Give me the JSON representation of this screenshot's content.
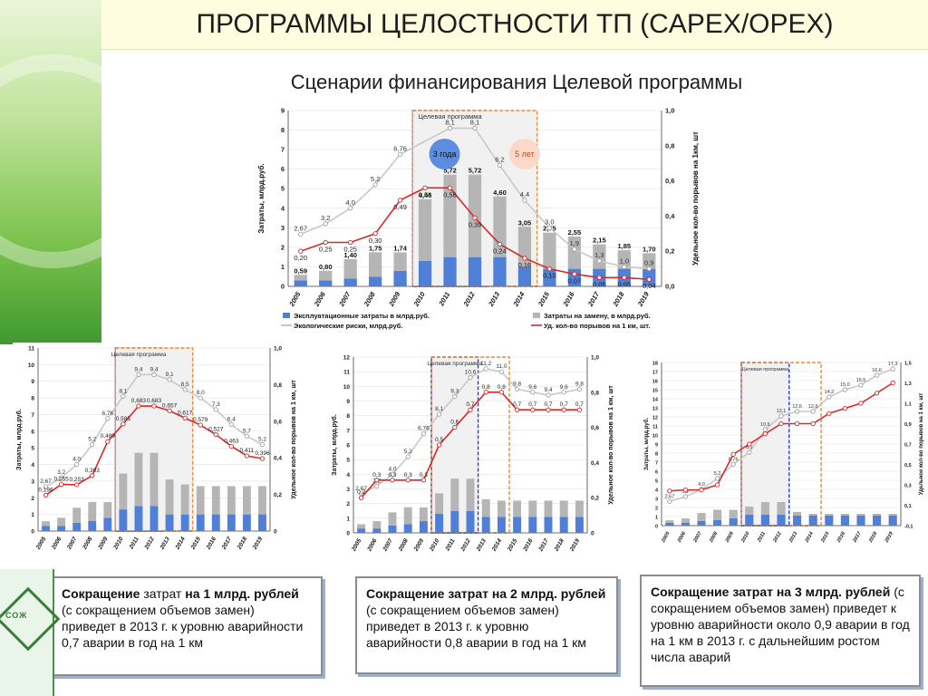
{
  "page": {
    "title": "ПРОГРАММЫ ЦЕЛОСТНОСТИ ТП (CAPEX/OPEX)",
    "subtitle": "Сценарии финансирования Целевой программы",
    "logo_text": "СОЖ"
  },
  "captions": [
    {
      "b1": "Сокращение",
      "t1": " затрат ",
      "b2": "на 1 млрд. рублей",
      "t2": "  (с сокращением объемов замен) приведет в 2013 г.  к уровню аварийности  0,7 аварии в год на 1 км"
    },
    {
      "b1": "Сокращение затрат на 2 млрд. рублей",
      "t1": " (с сокращением объемов замен) приведет в 2013 г. к уровню аварийности 0,8 аварии в год на 1 км",
      "b2": "",
      "t2": ""
    },
    {
      "b1": "Сокращение затрат на 3 млрд. рублей",
      "t1": " (с сокращением объемов замен) приведет к уровню аварийности около 0,9 аварии в год на 1 км  в 2013 г. с дальнейшим ростом числа аварий",
      "b2": "",
      "t2": ""
    }
  ],
  "colors": {
    "opex": "#4f7fd6",
    "capex": "#b5b5b5",
    "eco": "#c8c8c8",
    "failures": "#d62a2a",
    "dashed_blue": "#2a3cd6",
    "dashed_orange": "#f08a3a"
  },
  "chart_data": [
    {
      "id": "main",
      "type": "bar",
      "categories": [
        "2005",
        "2006",
        "2007",
        "2008",
        "2009",
        "2010",
        "2011",
        "2012",
        "2013",
        "2014",
        "2015",
        "2016",
        "2017",
        "2018",
        "2019"
      ],
      "ylabel": "Затраты, млрд.руб.",
      "y2label": "Удельное кол-во порывов на 1км, шт",
      "ylim": [
        0,
        9
      ],
      "y2lim": [
        0,
        1.0
      ],
      "yticks": [
        "0",
        "1",
        "2",
        "3",
        "4",
        "5",
        "6",
        "7",
        "8",
        "9"
      ],
      "y2ticks": [
        "0,0",
        "0,2",
        "0,4",
        "0,6",
        "0,8",
        "1,0"
      ],
      "legend_position": "bottom",
      "program_label": "Целевая программа",
      "scenario_labels": [
        "3 года",
        "5 лет"
      ],
      "series": [
        {
          "name": "Эксплуатационные затраты в млрд.руб.",
          "kind": "bar",
          "values": [
            0.3,
            0.3,
            0.4,
            0.5,
            0.8,
            1.3,
            1.5,
            1.5,
            1.5,
            1.0,
            0.9,
            0.9,
            0.9,
            0.9,
            0.9
          ]
        },
        {
          "name": "Затраты на замену, в млрд.руб.",
          "kind": "bar",
          "values": [
            0.29,
            0.5,
            1.0,
            1.25,
            0.94,
            3.16,
            4.22,
            4.22,
            3.1,
            2.05,
            1.85,
            1.65,
            1.25,
            0.95,
            0.8
          ]
        },
        {
          "name": "Экологические риски, млрд.руб.",
          "kind": "line",
          "values": [
            2.67,
            3.2,
            4.0,
            5.2,
            6.76,
            null,
            8.1,
            8.1,
            6.2,
            4.4,
            3.0,
            1.9,
            1.3,
            1.0,
            0.9
          ]
        },
        {
          "name": "Уд. кол-во порывов на 1 км, шт.",
          "kind": "line",
          "axis": "y2",
          "values": [
            0.2,
            0.25,
            0.25,
            0.3,
            0.49,
            0.56,
            0.56,
            0.39,
            0.24,
            0.16,
            0.1,
            0.07,
            0.05,
            0.05,
            0.04
          ]
        }
      ],
      "labels": {
        "bar_totals": [
          "0,59",
          "0,80",
          "1,40",
          "1,75",
          "1,74",
          "4,46",
          "5,72",
          "5,72",
          "4,60",
          "3,05",
          "2,75",
          "2,55",
          "2,15",
          "1,85",
          "1,70"
        ],
        "eco": [
          "2,67",
          "3,2",
          "4,0",
          "5,2",
          "6,76",
          "",
          "8,1",
          "8,1",
          "6,2",
          "4,4",
          "3,0",
          "1,9",
          "1,3",
          "1,0",
          "0,9"
        ],
        "fail": [
          "0,20",
          "0,25",
          "0,25",
          "0,30",
          "0,49",
          "0,56",
          "0,56",
          "0,39",
          "0,24",
          "0,16",
          "0,10",
          "0,07",
          "0,05",
          "0,05",
          "0,04"
        ]
      }
    },
    {
      "id": "s1",
      "type": "bar",
      "categories": [
        "2005",
        "2006",
        "2007",
        "2008",
        "2009",
        "2010",
        "2011",
        "2012",
        "2013",
        "2014",
        "2015",
        "2016",
        "2017",
        "2018",
        "2019"
      ],
      "ylabel": "Затраты, млрд.руб.",
      "y2label": "Удельное кол-во порывов на 1 км, шт",
      "ylim": [
        0,
        11
      ],
      "y2lim": [
        0,
        1.0
      ],
      "yticks": [
        "0",
        "1",
        "2",
        "3",
        "4",
        "5",
        "6",
        "7",
        "8",
        "9",
        "10",
        "11"
      ],
      "y2ticks": [
        "0",
        "0,2",
        "0,4",
        "0,6",
        "0,8",
        "1,0"
      ],
      "program_label": "Целевая программа",
      "series": [
        {
          "name": "opex",
          "kind": "bar",
          "values": [
            0.3,
            0.3,
            0.5,
            0.6,
            0.8,
            1.3,
            1.5,
            1.5,
            1.0,
            1.0,
            1.0,
            1.0,
            1.0,
            1.0,
            1.0
          ]
        },
        {
          "name": "capex",
          "kind": "bar",
          "values": [
            0.29,
            0.5,
            0.9,
            1.15,
            0.94,
            2.16,
            3.2,
            3.2,
            2.1,
            1.8,
            1.7,
            1.7,
            1.7,
            1.7,
            1.7
          ]
        },
        {
          "name": "eco",
          "kind": "line",
          "values": [
            2.67,
            3.2,
            4.0,
            5.2,
            6.76,
            8.1,
            9.4,
            9.4,
            9.1,
            8.5,
            8.0,
            7.3,
            6.4,
            5.7,
            5.2
          ]
        },
        {
          "name": "fail",
          "kind": "line",
          "axis": "y2",
          "values": [
            0.196,
            0.255,
            0.253,
            0.303,
            0.489,
            0.585,
            0.683,
            0.683,
            0.657,
            0.617,
            0.579,
            0.527,
            0.463,
            0.411,
            0.396
          ]
        }
      ],
      "labels": {
        "eco": [
          "2,67",
          "3,2",
          "4,0",
          "5,2",
          "6,76",
          "8,1",
          "9,4",
          "9,4",
          "9,1",
          "8,5",
          "8,0",
          "7,3",
          "6,4",
          "5,7",
          "5,2"
        ],
        "fail": [
          "0,196",
          "0,255",
          "0,253",
          "0,303",
          "0,489",
          "0,585",
          "0,683",
          "0,683",
          "0,657",
          "0,617",
          "0,579",
          "0,527",
          "0,463",
          "0,411",
          "0,396"
        ]
      }
    },
    {
      "id": "s2",
      "type": "bar",
      "categories": [
        "2005",
        "2006",
        "2007",
        "2008",
        "2009",
        "2010",
        "2011",
        "2012",
        "2013",
        "2014",
        "2015",
        "2016",
        "2017",
        "2018",
        "2019"
      ],
      "ylabel": "Затраты, млрд.руб.",
      "y2label": "Удельное кол-во порывов на 1 км, шт",
      "ylim": [
        0,
        12
      ],
      "y2lim": [
        0,
        1.0
      ],
      "yticks": [
        "0",
        "1",
        "2",
        "3",
        "4",
        "5",
        "6",
        "7",
        "8",
        "9",
        "10",
        "11",
        "12"
      ],
      "y2ticks": [
        "0",
        "0,2",
        "0,4",
        "0,6",
        "0,8",
        "1,0"
      ],
      "program_label": "Целевая программа",
      "series": [
        {
          "name": "opex",
          "kind": "bar",
          "values": [
            0.3,
            0.3,
            0.5,
            0.6,
            0.8,
            1.3,
            1.5,
            1.5,
            1.1,
            1.1,
            1.1,
            1.1,
            1.1,
            1.1,
            1.1
          ]
        },
        {
          "name": "capex",
          "kind": "bar",
          "values": [
            0.29,
            0.5,
            0.9,
            1.15,
            0.94,
            1.4,
            2.2,
            2.2,
            1.2,
            1.1,
            1.1,
            1.1,
            1.1,
            1.1,
            1.1
          ]
        },
        {
          "name": "eco",
          "kind": "line",
          "values": [
            2.67,
            3.2,
            4.0,
            5.2,
            6.76,
            8.1,
            9.3,
            10.6,
            11.2,
            11.0,
            9.8,
            9.6,
            9.4,
            9.6,
            9.8
          ]
        },
        {
          "name": "fail",
          "kind": "line",
          "axis": "y2",
          "values": [
            0.2,
            0.3,
            0.3,
            0.3,
            0.3,
            0.5,
            0.6,
            0.7,
            0.8,
            0.8,
            0.7,
            0.7,
            0.7,
            0.7,
            0.7
          ]
        }
      ],
      "labels": {
        "eco": [
          "2,67",
          "3,2",
          "4,0",
          "5,2",
          "6,76",
          "8,1",
          "9,3",
          "10,6",
          "11,2",
          "11,0",
          "9,8",
          "9,6",
          "9,4",
          "9,6",
          "9,8"
        ],
        "fail": [
          "0,2",
          "0,3",
          "0,3",
          "0,3",
          "0,3",
          "0,5",
          "0,6",
          "0,7",
          "0,8",
          "0,8",
          "0,7",
          "0,7",
          "0,7",
          "0,7",
          "0,7"
        ]
      }
    },
    {
      "id": "s3",
      "type": "bar",
      "categories": [
        "2005",
        "2006",
        "2007",
        "2008",
        "2009",
        "2010",
        "2011",
        "2012",
        "2013",
        "2014",
        "2015",
        "2016",
        "2017",
        "2018",
        "2019"
      ],
      "ylabel": "Затраты, млрд.руб.",
      "y2label": "Удельное кол-во порывов на 1 км, шт",
      "ylim": [
        0,
        18
      ],
      "y2lim": [
        -0.1,
        1.5
      ],
      "yticks": [
        "0",
        "1",
        "2",
        "3",
        "4",
        "5",
        "6",
        "7",
        "8",
        "9",
        "10",
        "11",
        "12",
        "13",
        "14",
        "15",
        "16",
        "17",
        "18"
      ],
      "y2ticks": [
        "-0,1",
        "0,1",
        "0,3",
        "0,5",
        "0,7",
        "0,9",
        "1,1",
        "1,3",
        "1,5"
      ],
      "program_label": "Целевая программа",
      "series": [
        {
          "name": "opex",
          "kind": "bar",
          "values": [
            0.3,
            0.3,
            0.5,
            0.6,
            0.8,
            1.2,
            1.2,
            1.2,
            1.1,
            1.1,
            1.1,
            1.1,
            1.1,
            1.1,
            1.1
          ]
        },
        {
          "name": "capex",
          "kind": "bar",
          "values": [
            0.29,
            0.5,
            0.9,
            1.15,
            0.94,
            0.9,
            1.4,
            1.4,
            0.4,
            0.2,
            0.2,
            0.2,
            0.2,
            0.2,
            0.2
          ]
        },
        {
          "name": "eco",
          "kind": "line",
          "values": [
            2.67,
            3.2,
            4.0,
            5.2,
            6.76,
            8.1,
            10.6,
            12.1,
            12.6,
            12.6,
            14.2,
            15.0,
            15.5,
            16.6,
            17.3
          ]
        },
        {
          "name": "fail",
          "kind": "line",
          "axis": "y2",
          "values": [
            0.24,
            0.25,
            0.25,
            0.3,
            0.6,
            0.7,
            0.8,
            0.9,
            0.9,
            0.9,
            1.0,
            1.05,
            1.1,
            1.2,
            1.3
          ]
        }
      ],
      "labels": {
        "eco": [
          "2,67",
          "3,2",
          "4,0",
          "5,2",
          "6,76",
          "8,1",
          "10,6",
          "12,1",
          "12,6",
          "12,6",
          "14,2",
          "15,0",
          "15,5",
          "16,6",
          "17,3"
        ],
        "fail": [
          "",
          "",
          "",
          "",
          "",
          "",
          "",
          "",
          "",
          "",
          "",
          "",
          "",
          "",
          ""
        ]
      }
    }
  ]
}
